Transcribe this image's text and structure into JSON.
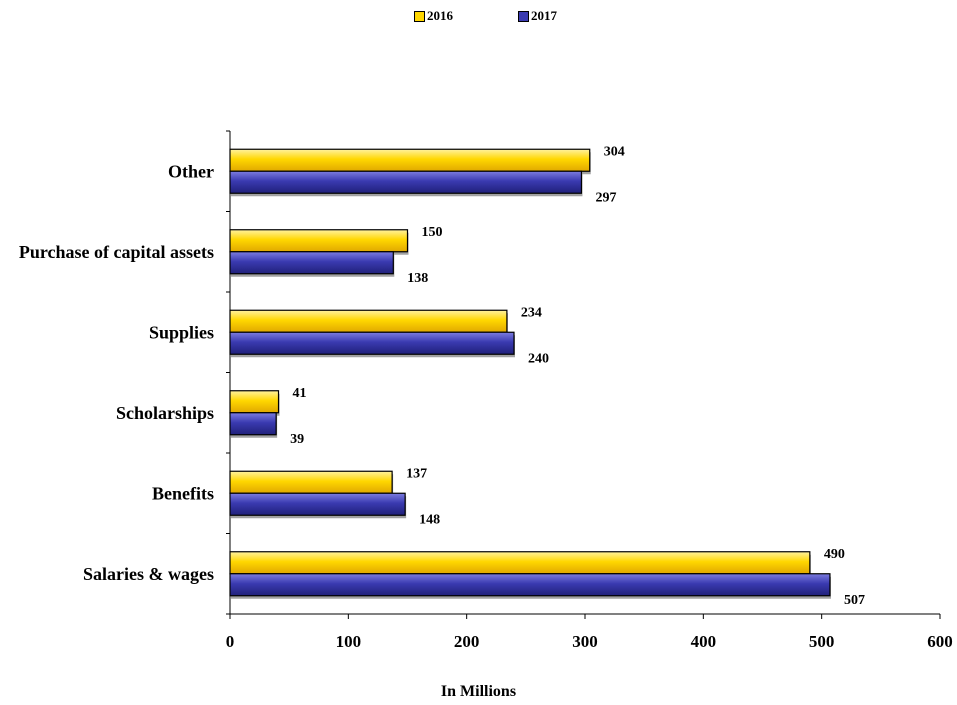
{
  "chart_data": {
    "type": "bar",
    "orientation": "horizontal",
    "categories": [
      "Salaries & wages",
      "Benefits",
      "Scholarships",
      "Supplies",
      "Purchase of capital assets",
      "Other"
    ],
    "series": [
      {
        "name": "2016",
        "values": [
          490,
          137,
          41,
          234,
          150,
          304
        ],
        "color": "#FFD700"
      },
      {
        "name": "2017",
        "values": [
          507,
          148,
          39,
          240,
          138,
          297
        ],
        "color": "#3A3AB0"
      }
    ],
    "xlabel": "In Millions",
    "xlim": [
      0,
      600
    ],
    "xticks": [
      0,
      100,
      200,
      300,
      400,
      500,
      600
    ],
    "grid": false,
    "legend_position": "top-center"
  }
}
